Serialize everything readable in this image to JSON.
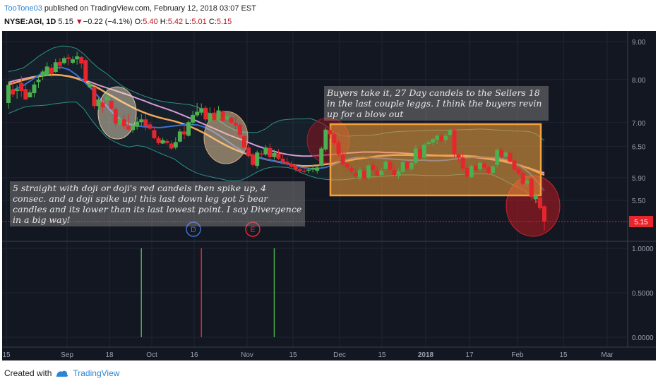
{
  "header": {
    "username": "TooTone03",
    "published": "published on TradingView.com, February 12, 2018 03:07 EST",
    "symbol": "NYSE:AGI, 1D",
    "last": "5.15",
    "down_arrow": "▼",
    "change": "−0.22 (−4.1%)",
    "o_label": "O:",
    "o_val": "5.40",
    "h_label": "H:",
    "h_val": "5.42",
    "l_label": "L:",
    "l_val": "5.01",
    "c_label": "C:",
    "c_val": "5.15"
  },
  "footer": {
    "created_with": "Created with",
    "brand": "TradingView"
  },
  "annotations": {
    "note_buyers": "Buyers take it, 27 Day candels to the Sellers 18 in the last couple leggs. I think the buyers revin up for a blow out",
    "note_doji": "5 straight with doji or doji's red candels then spike up, 4 consec. and a doji spike up! this last down leg got 5 bear candles and its lower than its last lowest point. I say Divergence in a big way!",
    "marker_d": "D",
    "marker_e": "E"
  },
  "colors": {
    "background": "#131722",
    "bull": "#4caf50",
    "bear": "#e5262c",
    "bb_band": "#2f8f86",
    "ema_fast": "#3d6fd6",
    "ema_mid": "#f1a65a",
    "ema_slow": "#d89ad8",
    "price_line": "#e5262c",
    "box": "#f5a13b"
  },
  "chart_data": {
    "type": "candlestick",
    "symbol": "NYSE:AGI",
    "interval": "1D",
    "y_ticks": [
      "9.00",
      "8.00",
      "7.00",
      "6.50",
      "5.90",
      "5.50"
    ],
    "last_price_label": "5.15",
    "x_ticks": [
      "15",
      "Sep",
      "18",
      "Oct",
      "16",
      "Nov",
      "15",
      "Dec",
      "15",
      "2018",
      "17",
      "Feb",
      "15",
      "Mar"
    ],
    "ohlc_key": [
      "o",
      "h",
      "l",
      "c"
    ],
    "candles": [
      [
        7.44,
        7.95,
        7.31,
        7.87
      ],
      [
        7.76,
        7.94,
        7.58,
        7.64
      ],
      [
        7.72,
        7.86,
        7.54,
        7.76
      ],
      [
        7.92,
        8.09,
        7.58,
        7.72
      ],
      [
        7.77,
        7.9,
        7.52,
        7.52
      ],
      [
        7.57,
        7.76,
        7.57,
        7.69
      ],
      [
        7.67,
        7.95,
        7.57,
        7.88
      ],
      [
        7.94,
        8.08,
        7.79,
        8
      ],
      [
        8.08,
        8.25,
        7.99,
        8.2
      ],
      [
        8.11,
        8.44,
        8.09,
        8.33
      ],
      [
        8.3,
        8.39,
        8.06,
        8.14
      ],
      [
        8.19,
        8.53,
        8.17,
        8.44
      ],
      [
        8.45,
        8.55,
        8.25,
        8.35
      ],
      [
        8.42,
        8.59,
        8.38,
        8.55
      ],
      [
        8.57,
        8.65,
        8.37,
        8.53
      ],
      [
        8.43,
        8.6,
        8.39,
        8.52
      ],
      [
        8.52,
        8.72,
        8.38,
        8.6
      ],
      [
        8.58,
        8.6,
        8.28,
        8.41
      ],
      [
        8.5,
        8.54,
        7.91,
        7.96
      ],
      [
        7.81,
        7.96,
        7.79,
        7.9
      ],
      [
        7.82,
        7.82,
        7.31,
        7.37
      ],
      [
        7.37,
        7.56,
        7.28,
        7.52
      ],
      [
        7.45,
        7.56,
        7.22,
        7.34
      ],
      [
        7.5,
        7.82,
        7.41,
        7.59
      ],
      [
        7.49,
        7.54,
        7.29,
        7.31
      ],
      [
        7.3,
        7.34,
        6.92,
        6.98
      ],
      [
        6.97,
        7.16,
        6.92,
        7.07
      ],
      [
        7.07,
        7.17,
        6.86,
        6.92
      ],
      [
        6.92,
        7.18,
        6.82,
        6.85
      ],
      [
        6.84,
        7.03,
        6.78,
        6.94
      ],
      [
        6.91,
        7.12,
        6.85,
        7.02
      ],
      [
        7.01,
        7.19,
        6.93,
        7.07
      ],
      [
        7.07,
        7.18,
        6.83,
        6.92
      ],
      [
        6.96,
        7.01,
        6.84,
        6.87
      ],
      [
        6.84,
        6.9,
        6.65,
        6.67
      ],
      [
        6.67,
        6.71,
        6.54,
        6.57
      ],
      [
        6.56,
        6.68,
        6.55,
        6.63
      ],
      [
        6.61,
        6.65,
        6.54,
        6.57
      ],
      [
        6.56,
        6.62,
        6.43,
        6.46
      ],
      [
        6.48,
        6.69,
        6.44,
        6.59
      ],
      [
        6.6,
        6.86,
        6.58,
        6.81
      ],
      [
        6.81,
        6.95,
        6.65,
        6.75
      ],
      [
        6.72,
        7.05,
        6.7,
        7.01
      ],
      [
        7,
        7.26,
        6.94,
        7.17
      ],
      [
        7.16,
        7.44,
        7.12,
        7.24
      ],
      [
        7.22,
        7.43,
        7.16,
        7.32
      ],
      [
        7.33,
        7.38,
        7.02,
        7.07
      ],
      [
        7.04,
        7.34,
        7.01,
        7.21
      ],
      [
        7.22,
        7.33,
        7.03,
        7.06
      ],
      [
        7.08,
        7.37,
        7.02,
        7.27
      ],
      [
        7.24,
        7.27,
        7.03,
        7.04
      ],
      [
        7.07,
        7.2,
        7.06,
        7.14
      ],
      [
        7.11,
        7.13,
        6.98,
        7
      ],
      [
        7,
        7.13,
        6.86,
        6.94
      ],
      [
        6.95,
        6.99,
        6.68,
        6.74
      ],
      [
        6.71,
        6.74,
        6.46,
        6.48
      ],
      [
        6.48,
        6.53,
        6.27,
        6.31
      ],
      [
        6.34,
        6.37,
        6.1,
        6.14
      ],
      [
        6.12,
        6.42,
        6.07,
        6.38
      ],
      [
        6.36,
        6.42,
        6.29,
        6.35
      ],
      [
        6.34,
        6.53,
        6.31,
        6.48
      ],
      [
        6.47,
        6.56,
        6.25,
        6.29
      ],
      [
        6.29,
        6.44,
        6.24,
        6.37
      ],
      [
        6.36,
        6.45,
        6.23,
        6.26
      ],
      [
        6.26,
        6.36,
        6.15,
        6.19
      ],
      [
        6.2,
        6.28,
        6.13,
        6.16
      ],
      [
        6.16,
        6.21,
        6.07,
        6.1
      ],
      [
        6.12,
        6.15,
        6.01,
        6.05
      ],
      [
        6.06,
        6.11,
        5.99,
        6.03
      ],
      [
        6.03,
        6.08,
        5.99,
        6.02
      ],
      [
        6.03,
        6.09,
        5.98,
        6.05
      ],
      [
        6.05,
        6.14,
        6,
        6.08
      ],
      [
        6.03,
        6.13,
        5.98,
        6.09
      ],
      [
        6.12,
        6.5,
        6.11,
        6.46
      ],
      [
        6.44,
        6.9,
        6.4,
        6.85
      ],
      [
        6.84,
        6.91,
        6.66,
        6.75
      ],
      [
        6.75,
        6.8,
        6.53,
        6.57
      ],
      [
        6.58,
        6.63,
        6.31,
        6.35
      ],
      [
        6.34,
        6.4,
        6.12,
        6.15
      ],
      [
        6.16,
        6.2,
        6.03,
        6.09
      ],
      [
        6.08,
        6.12,
        5.96,
        6.01
      ],
      [
        5.99,
        6.05,
        5.88,
        5.93
      ],
      [
        5.91,
        6.09,
        5.85,
        6.04
      ],
      [
        6.03,
        6.07,
        5.86,
        5.89
      ],
      [
        5.9,
        6.16,
        5.86,
        6.13
      ],
      [
        6.14,
        6.21,
        6.01,
        6.04
      ],
      [
        6.03,
        6.11,
        5.92,
        5.94
      ],
      [
        5.95,
        6.07,
        5.92,
        6.03
      ],
      [
        6.06,
        6.24,
        6.02,
        6.2
      ],
      [
        6.19,
        6.24,
        6.03,
        6.05
      ],
      [
        6.04,
        6.11,
        5.92,
        5.95
      ],
      [
        5.93,
        6.07,
        5.88,
        6.02
      ],
      [
        6.01,
        6.22,
        5.98,
        6.19
      ],
      [
        6.19,
        6.22,
        6.04,
        6.07
      ],
      [
        6.06,
        6.21,
        6.03,
        6.18
      ],
      [
        6.18,
        6.52,
        6.14,
        6.46
      ],
      [
        6.45,
        6.5,
        6.23,
        6.27
      ],
      [
        6.28,
        6.57,
        6.23,
        6.54
      ],
      [
        6.55,
        6.62,
        6.52,
        6.59
      ],
      [
        6.58,
        6.68,
        6.51,
        6.65
      ],
      [
        6.64,
        6.75,
        6.55,
        6.72
      ],
      [
        6.72,
        6.76,
        6.58,
        6.62
      ],
      [
        6.63,
        6.76,
        6.56,
        6.72
      ],
      [
        6.74,
        6.87,
        6.7,
        6.84
      ],
      [
        6.84,
        6.88,
        6.29,
        6.35
      ],
      [
        6.34,
        6.36,
        6.19,
        6.28
      ],
      [
        6.28,
        6.42,
        6.03,
        6.07
      ],
      [
        6.08,
        6.12,
        5.88,
        5.92
      ],
      [
        5.91,
        6.15,
        5.89,
        6.12
      ],
      [
        6.12,
        6.15,
        6.01,
        6.04
      ],
      [
        6.06,
        6.21,
        6.02,
        6.18
      ],
      [
        6.16,
        6.21,
        6.06,
        6.09
      ],
      [
        6.09,
        6.13,
        5.96,
        5.99
      ],
      [
        5.99,
        6.13,
        5.96,
        6.11
      ],
      [
        6.14,
        6.47,
        6.09,
        6.43
      ],
      [
        6.43,
        6.48,
        6.26,
        6.3
      ],
      [
        6.3,
        6.42,
        6.24,
        6.38
      ],
      [
        6.37,
        6.39,
        6.18,
        6.2
      ],
      [
        6.22,
        6.24,
        6.02,
        6.05
      ],
      [
        6.06,
        6.09,
        5.95,
        5.98
      ],
      [
        5.99,
        6.03,
        5.76,
        5.79
      ],
      [
        5.79,
        5.91,
        5.73,
        5.85
      ],
      [
        5.88,
        5.91,
        5.5,
        5.56
      ],
      [
        5.52,
        5.63,
        5.45,
        5.59
      ],
      [
        5.55,
        5.58,
        5.34,
        5.37
      ],
      [
        5.4,
        5.42,
        5.01,
        5.15
      ]
    ],
    "bb_upper": [
      8.2,
      8.24,
      8.3,
      8.44,
      8.6,
      8.73,
      8.83,
      8.88,
      8.87,
      8.81,
      8.66,
      8.45,
      8.28,
      8.15,
      7.99,
      7.85,
      7.75,
      7.67,
      7.6,
      7.54,
      7.49,
      7.46,
      7.44,
      7.42,
      7.4,
      7.35,
      7.27,
      7.16,
      7.03,
      6.92,
      6.84,
      6.8,
      6.79,
      6.79,
      6.86,
      6.98,
      7.05,
      7.07,
      7.08,
      7.08,
      7.09,
      7.03,
      6.94,
      6.81,
      6.72,
      6.71,
      6.72,
      6.73,
      6.73,
      6.75,
      6.78,
      6.8,
      6.81,
      6.82,
      6.82,
      6.83,
      6.84,
      6.84,
      6.84,
      6.84,
      6.85,
      6.85,
      6.86,
      6.86,
      6.85,
      6.84,
      6.83,
      6.82,
      6.82,
      6.81,
      6.75,
      6.62
    ],
    "bb_lower": [
      7.2,
      7.27,
      7.34,
      7.37,
      7.38,
      7.39,
      7.42,
      7.44,
      7.46,
      7.46,
      7.3,
      7.06,
      6.86,
      6.69,
      6.6,
      6.53,
      6.49,
      6.52,
      6.5,
      6.44,
      6.37,
      6.31,
      6.25,
      6.14,
      6.05,
      5.98,
      5.94,
      5.91,
      5.88,
      5.85,
      5.84,
      5.86,
      5.93,
      6.01,
      6.07,
      6.1,
      6.1,
      6.09,
      6.05,
      5.98,
      5.93,
      5.89,
      5.87,
      5.86,
      5.86,
      5.87,
      5.89,
      5.9,
      5.91,
      5.92,
      5.93,
      5.94,
      5.95,
      5.95,
      5.95,
      5.94,
      5.94,
      5.94,
      5.94,
      5.95,
      5.96,
      5.97,
      5.97,
      5.97,
      5.96,
      5.9,
      5.83,
      5.76,
      5.69,
      5.62,
      5.48,
      5.33
    ],
    "ema_fast": [
      7.71,
      7.77,
      7.86,
      7.98,
      8.11,
      8.22,
      8.29,
      8.31,
      8.25,
      8.12,
      7.95,
      7.77,
      7.57,
      7.37,
      7.18,
      7.05,
      6.97,
      6.93,
      6.91,
      6.9,
      6.89,
      6.91,
      6.93,
      6.95,
      6.96,
      6.95,
      6.9,
      6.82,
      6.72,
      6.61,
      6.5,
      6.41,
      6.34,
      6.29,
      6.25,
      6.22,
      6.19,
      6.16,
      6.12,
      6.09,
      6.07,
      6.07,
      6.09,
      6.14,
      6.2,
      6.25,
      6.28,
      6.29,
      6.28,
      6.27,
      6.26,
      6.25,
      6.24,
      6.23,
      6.23,
      6.23,
      6.22,
      6.22,
      6.23,
      6.25,
      6.27,
      6.28,
      6.29,
      6.29,
      6.28,
      6.27,
      6.24,
      6.19,
      6.1,
      5.99,
      5.84,
      5.66
    ],
    "ema_mid": [
      7.88,
      7.93,
      7.99,
      8.04,
      8.08,
      8.11,
      8.12,
      8.11,
      8.08,
      8.03,
      7.96,
      7.87,
      7.78,
      7.67,
      7.57,
      7.47,
      7.38,
      7.29,
      7.22,
      7.16,
      7.11,
      7.07,
      7.03,
      6.98,
      6.92,
      6.85,
      6.77,
      6.68,
      6.59,
      6.51,
      6.44,
      6.38,
      6.33,
      6.29,
      6.25,
      6.22,
      6.19,
      6.16,
      6.13,
      6.12,
      6.12,
      6.13,
      6.15,
      6.17,
      6.2,
      6.22,
      6.25,
      6.27,
      6.29,
      6.31,
      6.32,
      6.33,
      6.33,
      6.33,
      6.32,
      6.32,
      6.32,
      6.32,
      6.32,
      6.32,
      6.32,
      6.31,
      6.3,
      6.28,
      6.26,
      6.24,
      6.21,
      6.17,
      6.12,
      6.07,
      6.01,
      5.95
    ],
    "ema_slow": [
      7.93,
      7.98,
      8.02,
      8.06,
      8.09,
      8.11,
      8.12,
      8.11,
      8.09,
      8.04,
      7.99,
      7.93,
      7.86,
      7.8,
      7.74,
      7.68,
      7.62,
      7.55,
      7.49,
      7.42,
      7.36,
      7.3,
      7.24,
      7.17,
      7.1,
      7.03,
      6.96,
      6.89,
      6.82,
      6.75,
      6.69,
      6.63,
      6.57,
      6.51,
      6.46,
      6.41,
      6.37,
      6.34,
      6.32,
      6.31,
      6.31,
      6.32,
      6.33,
      6.34,
      6.36,
      6.37,
      6.38,
      6.39,
      6.39,
      6.39,
      6.38,
      6.38,
      6.37,
      6.36,
      6.35,
      6.34,
      6.33,
      6.32,
      6.31,
      6.31,
      6.3,
      6.29,
      6.28,
      6.26,
      6.24,
      6.22,
      6.19,
      6.16,
      6.12,
      6.08,
      6.03,
      5.99
    ],
    "indicator_range": [
      0,
      1
    ],
    "indicator_ticks": [
      "1.0000",
      "0.5000",
      "0.0000"
    ],
    "indicator_spikes": [
      {
        "bar": 31,
        "value": 1.0,
        "color": "#4caf50"
      },
      {
        "bar": 45,
        "value": 1.0,
        "color": "#e5262c"
      },
      {
        "bar": 62,
        "value": 1.0,
        "color": "#4caf50"
      }
    ]
  }
}
